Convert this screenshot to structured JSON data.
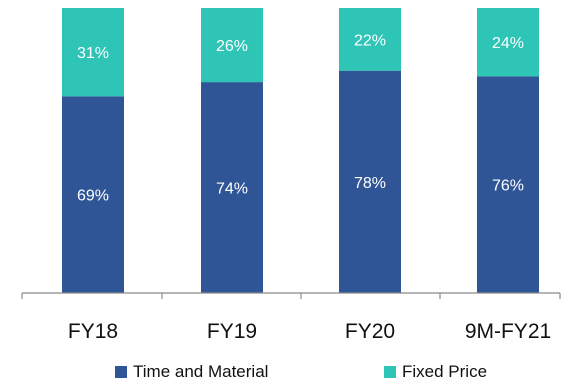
{
  "chart_data": {
    "type": "bar",
    "stacked": true,
    "percent": true,
    "categories": [
      "FY18",
      "FY19",
      "FY20",
      "9M-FY21"
    ],
    "series": [
      {
        "name": "Time and Material",
        "values": [
          69,
          74,
          78,
          76
        ],
        "color": "#2f5597"
      },
      {
        "name": "Fixed Price",
        "values": [
          31,
          26,
          22,
          24
        ],
        "color": "#2ec4b6"
      }
    ],
    "ylim": [
      0,
      100
    ],
    "grid": false,
    "legend_position": "bottom",
    "data_labels": [
      [
        "69%",
        "74%",
        "78%",
        "76%"
      ],
      [
        "31%",
        "26%",
        "22%",
        "24%"
      ]
    ]
  }
}
